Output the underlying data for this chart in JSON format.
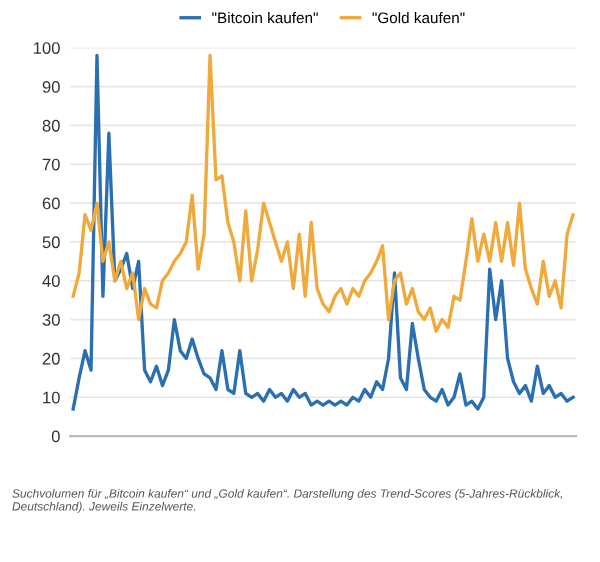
{
  "chart_data": {
    "type": "line",
    "categories": [
      null,
      null,
      null,
      null,
      null,
      null,
      null,
      null,
      null,
      null,
      null,
      null,
      null,
      null,
      null,
      null,
      null,
      null,
      null,
      null,
      null,
      null,
      null,
      null,
      null,
      null,
      null,
      null,
      null,
      null,
      null,
      null,
      null,
      null,
      null,
      null,
      null,
      null,
      null,
      null,
      null,
      null,
      null,
      null,
      null,
      null,
      null,
      null,
      null,
      null,
      null,
      null,
      null,
      null,
      null,
      null,
      null,
      null,
      null,
      null,
      null,
      null,
      null,
      null,
      null,
      null,
      null,
      null,
      null,
      null,
      null,
      null,
      null,
      null,
      null,
      null,
      null,
      null,
      null,
      null,
      null,
      null,
      null,
      null,
      null
    ],
    "series": [
      {
        "name": "\"Bitcoin kaufen\"",
        "color": "#2a6fb0",
        "values": [
          7,
          15,
          22,
          17,
          98,
          36,
          78,
          40,
          43,
          47,
          38,
          45,
          17,
          14,
          18,
          13,
          17,
          30,
          22,
          20,
          25,
          20,
          16,
          15,
          12,
          22,
          12,
          11,
          22,
          11,
          10,
          11,
          9,
          12,
          10,
          11,
          9,
          12,
          10,
          11,
          8,
          9,
          8,
          9,
          8,
          9,
          8,
          10,
          9,
          12,
          10,
          14,
          12,
          20,
          42,
          15,
          12,
          29,
          20,
          12,
          10,
          9,
          12,
          8,
          10,
          16,
          8,
          9,
          7,
          10,
          43,
          30,
          40,
          20,
          14,
          11,
          13,
          9,
          18,
          11,
          13,
          10,
          11,
          9,
          10
        ]
      },
      {
        "name": "\"Gold kaufen\"",
        "color": "#f0a93b",
        "values": [
          36,
          42,
          57,
          53,
          60,
          45,
          50,
          40,
          45,
          38,
          42,
          30,
          38,
          34,
          33,
          40,
          42,
          45,
          47,
          50,
          62,
          43,
          52,
          98,
          66,
          67,
          55,
          50,
          40,
          58,
          40,
          48,
          60,
          55,
          50,
          45,
          50,
          38,
          52,
          36,
          55,
          38,
          34,
          32,
          36,
          38,
          34,
          38,
          36,
          40,
          42,
          45,
          49,
          30,
          40,
          42,
          34,
          38,
          32,
          30,
          33,
          27,
          30,
          28,
          36,
          35,
          45,
          56,
          45,
          52,
          45,
          55,
          45,
          55,
          44,
          60,
          43,
          38,
          34,
          45,
          36,
          40,
          33,
          52,
          57
        ]
      }
    ],
    "ylim": [
      0,
      100
    ],
    "yticks": [
      0,
      10,
      20,
      30,
      40,
      50,
      60,
      70,
      80,
      90,
      100
    ],
    "grid": "y",
    "legend": "top",
    "tick_labels": "y",
    "annotations": [
      "Suchvolumen für „Bitcoin kaufen“ und „Gold kaufen“. Darstellung des Trend-Scores (5-Jahres-Rückblick, Deutschland). Jeweils Einzelwerte."
    ]
  }
}
